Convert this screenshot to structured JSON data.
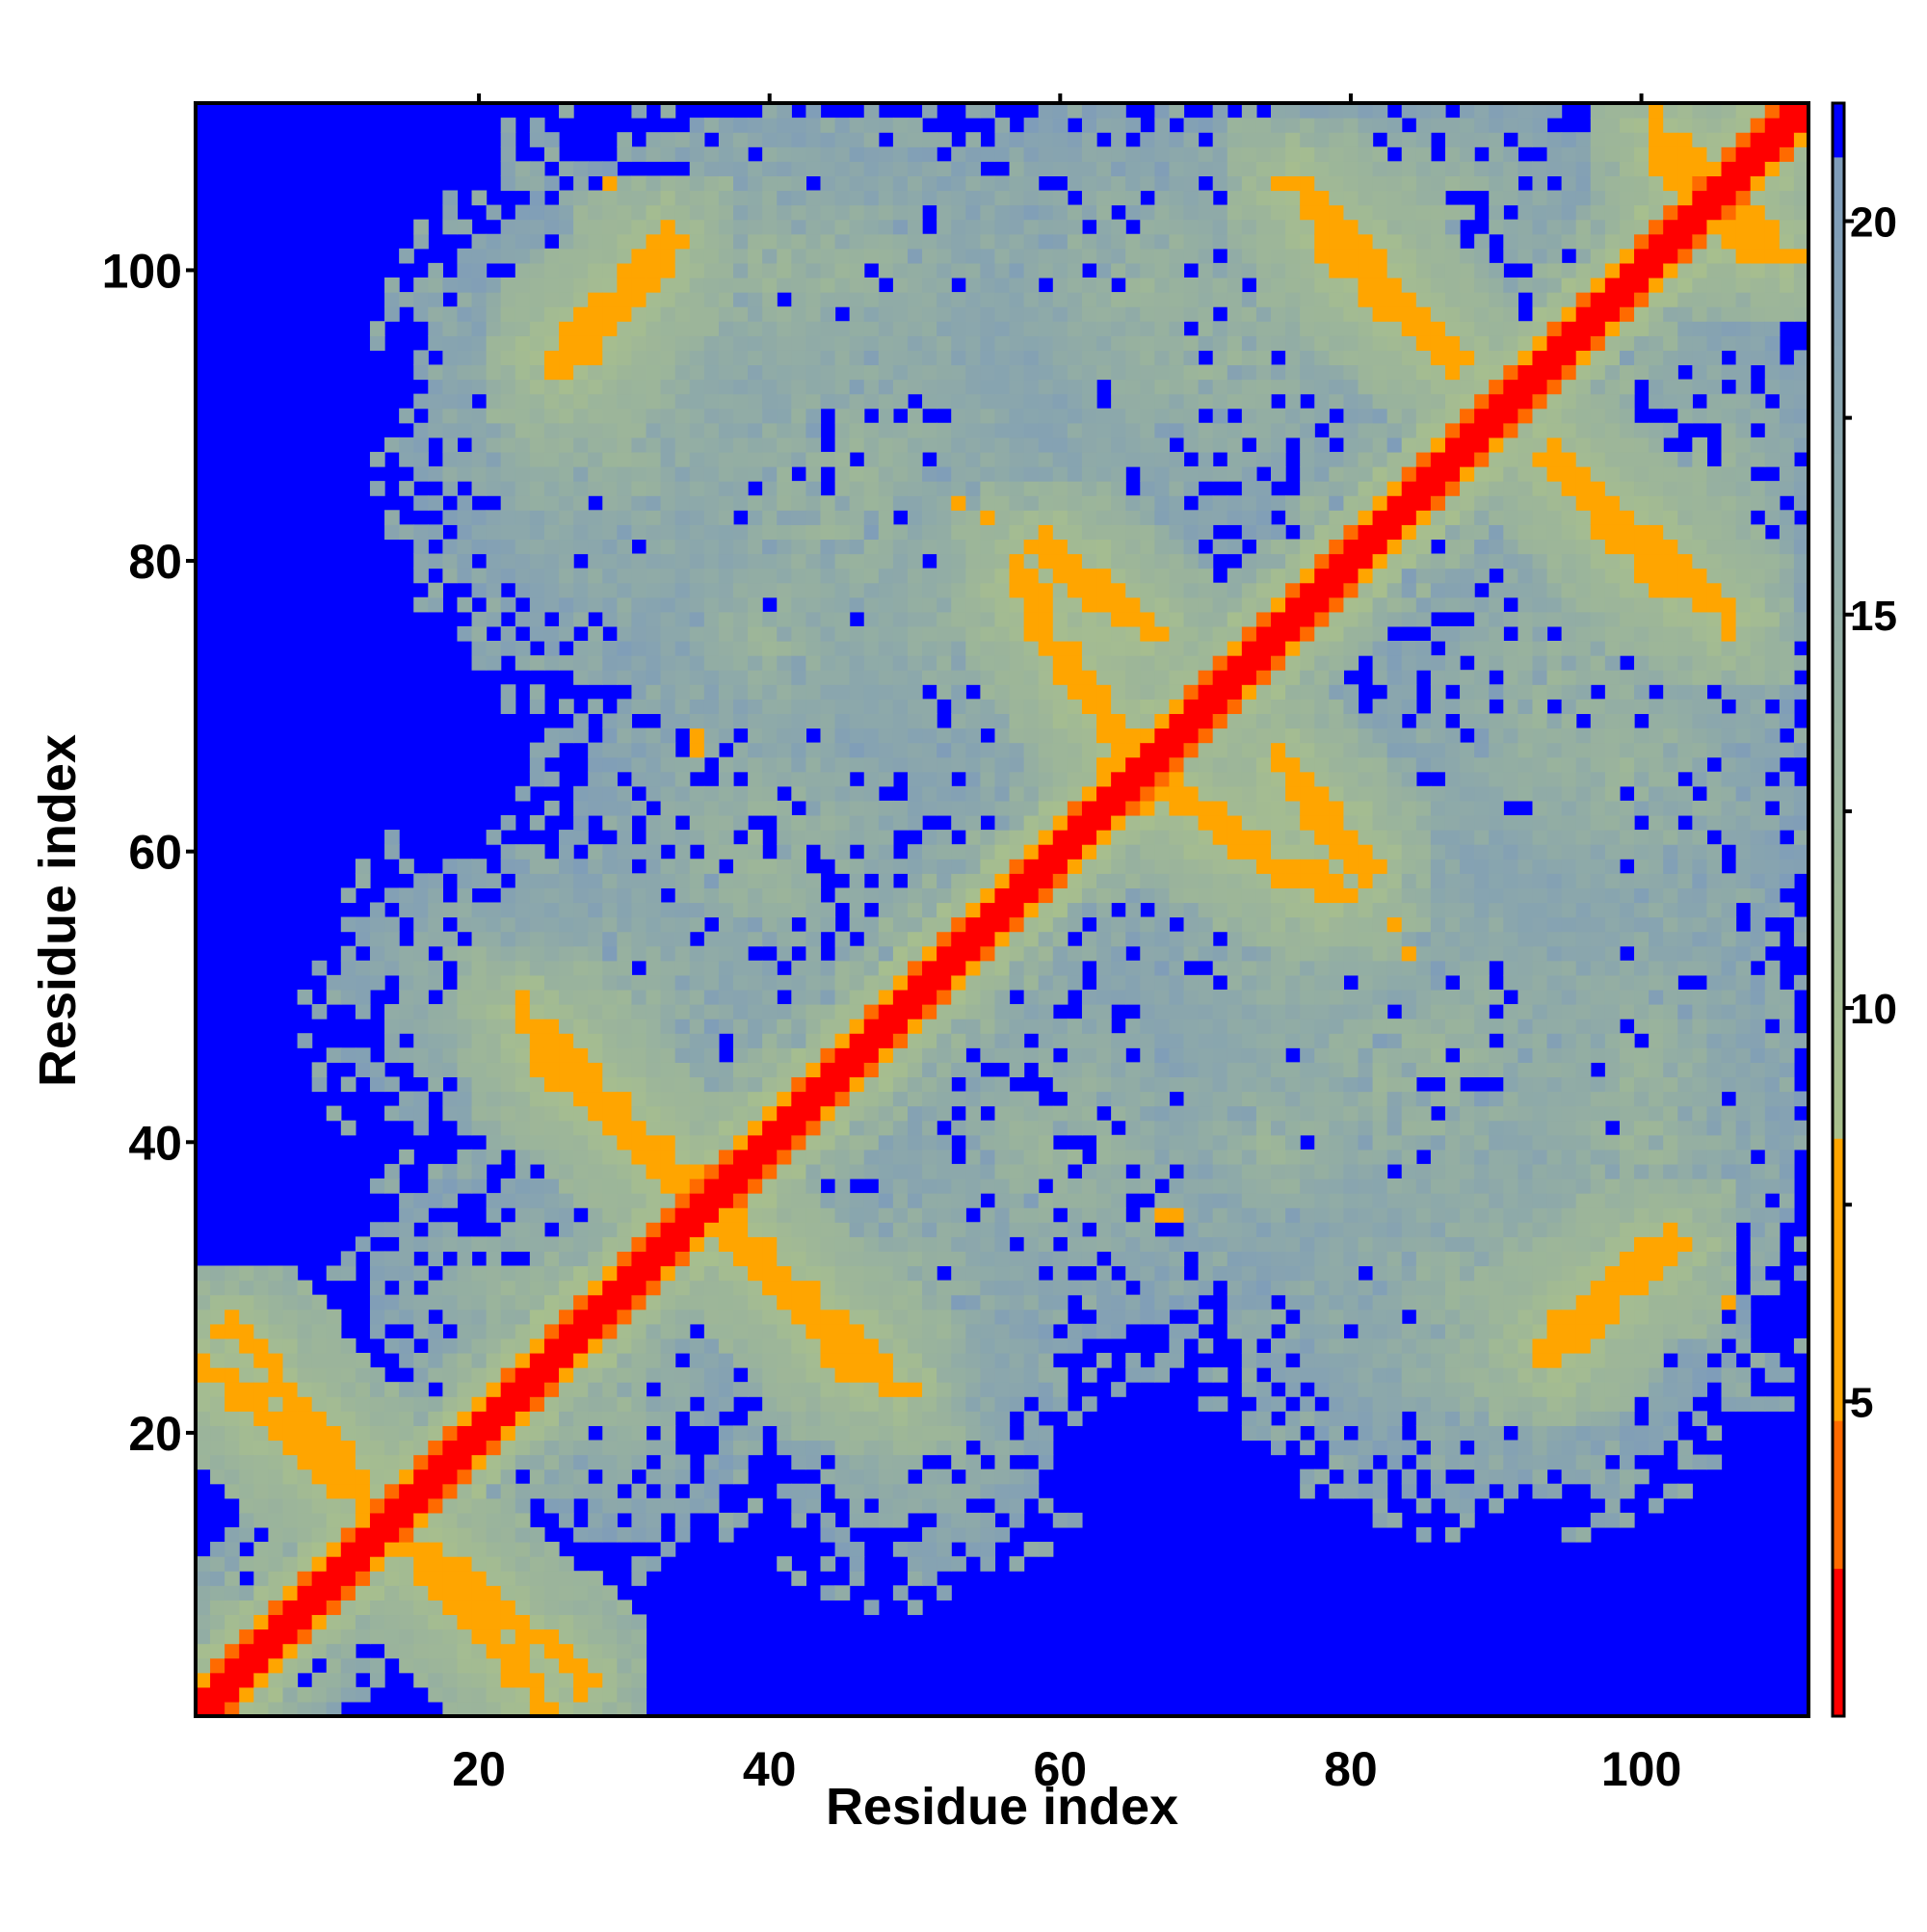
{
  "chart_data": {
    "type": "heatmap",
    "title": "",
    "xlabel": "Residue index",
    "ylabel": "Residue index",
    "x_range": [
      1,
      111
    ],
    "y_range": [
      1,
      111
    ],
    "x_ticks": [
      20,
      40,
      60,
      80,
      100
    ],
    "y_ticks": [
      20,
      40,
      60,
      80,
      100
    ],
    "colorbar": {
      "ticks": [
        5,
        10,
        15,
        20
      ],
      "range": [
        1,
        21.5
      ],
      "colors": [
        "#ff0000",
        "#ff6a00",
        "#ffa500",
        "#a9c08c",
        "#7f9db9",
        "#0000ff"
      ],
      "background_value": 21.5
    },
    "diagonal": {
      "band_value_center": 1.5,
      "band_value_adjacent": 5.5
    },
    "contact_bands": [
      {
        "from": [
          3,
          27
        ],
        "to": [
          25,
          1
        ],
        "core_value": 6.5
      },
      {
        "from": [
          24,
          46
        ],
        "to": [
          35,
          37
        ],
        "core_value": 6.5
      },
      {
        "from": [
          36,
          35
        ],
        "to": [
          49,
          23
        ],
        "core_value": 6.5
      },
      {
        "from": [
          26,
          93
        ],
        "to": [
          33,
          102
        ],
        "core_value": 6.5
      },
      {
        "from": [
          59,
          81
        ],
        "to": [
          66,
          75
        ],
        "core_value": 6.5
      },
      {
        "from": [
          64,
          66
        ],
        "to": [
          79,
          57
        ],
        "core_value": 6.5
      },
      {
        "from": [
          76,
          106
        ],
        "to": [
          87,
          94
        ],
        "core_value": 6.5
      },
      {
        "from": [
          94,
          87
        ],
        "to": [
          102,
          78
        ],
        "core_value": 6.5
      },
      {
        "from": [
          94,
          25
        ],
        "to": [
          100,
          32
        ],
        "core_value": 6.5
      },
      {
        "from": [
          101,
          110
        ],
        "to": [
          108,
          101
        ],
        "core_value": 6.5
      }
    ],
    "high_contact_spots": [
      {
        "x": 35,
        "y": 67,
        "value": 6.5
      },
      {
        "x": 55,
        "y": 83,
        "value": 6.5
      },
      {
        "x": 68,
        "y": 35,
        "value": 5.5
      },
      {
        "x": 84,
        "y": 53,
        "value": 6.5
      },
      {
        "x": 29,
        "y": 106,
        "value": 6.5
      },
      {
        "x": 71,
        "y": 62,
        "value": 6.5
      }
    ],
    "contact_regions": [
      {
        "cx": 30,
        "cy": 90,
        "rx": 12,
        "ry": 18
      },
      {
        "cx": 45,
        "cy": 100,
        "rx": 14,
        "ry": 10
      },
      {
        "cx": 70,
        "cy": 95,
        "rx": 16,
        "ry": 14
      },
      {
        "cx": 40,
        "cy": 60,
        "rx": 14,
        "ry": 14
      },
      {
        "cx": 55,
        "cy": 75,
        "rx": 12,
        "ry": 12
      },
      {
        "cx": 30,
        "cy": 50,
        "rx": 12,
        "ry": 10
      },
      {
        "cx": 22,
        "cy": 30,
        "rx": 10,
        "ry": 8
      },
      {
        "cx": 50,
        "cy": 20,
        "rx": 10,
        "ry": 10
      },
      {
        "cx": 85,
        "cy": 45,
        "rx": 20,
        "ry": 16
      },
      {
        "cx": 90,
        "cy": 25,
        "rx": 14,
        "ry": 10
      },
      {
        "cx": 100,
        "cy": 65,
        "rx": 12,
        "ry": 14
      },
      {
        "cx": 100,
        "cy": 40,
        "rx": 12,
        "ry": 10
      },
      {
        "cx": 105,
        "cy": 85,
        "rx": 8,
        "ry": 14
      },
      {
        "cx": 75,
        "cy": 40,
        "rx": 10,
        "ry": 10
      }
    ]
  }
}
